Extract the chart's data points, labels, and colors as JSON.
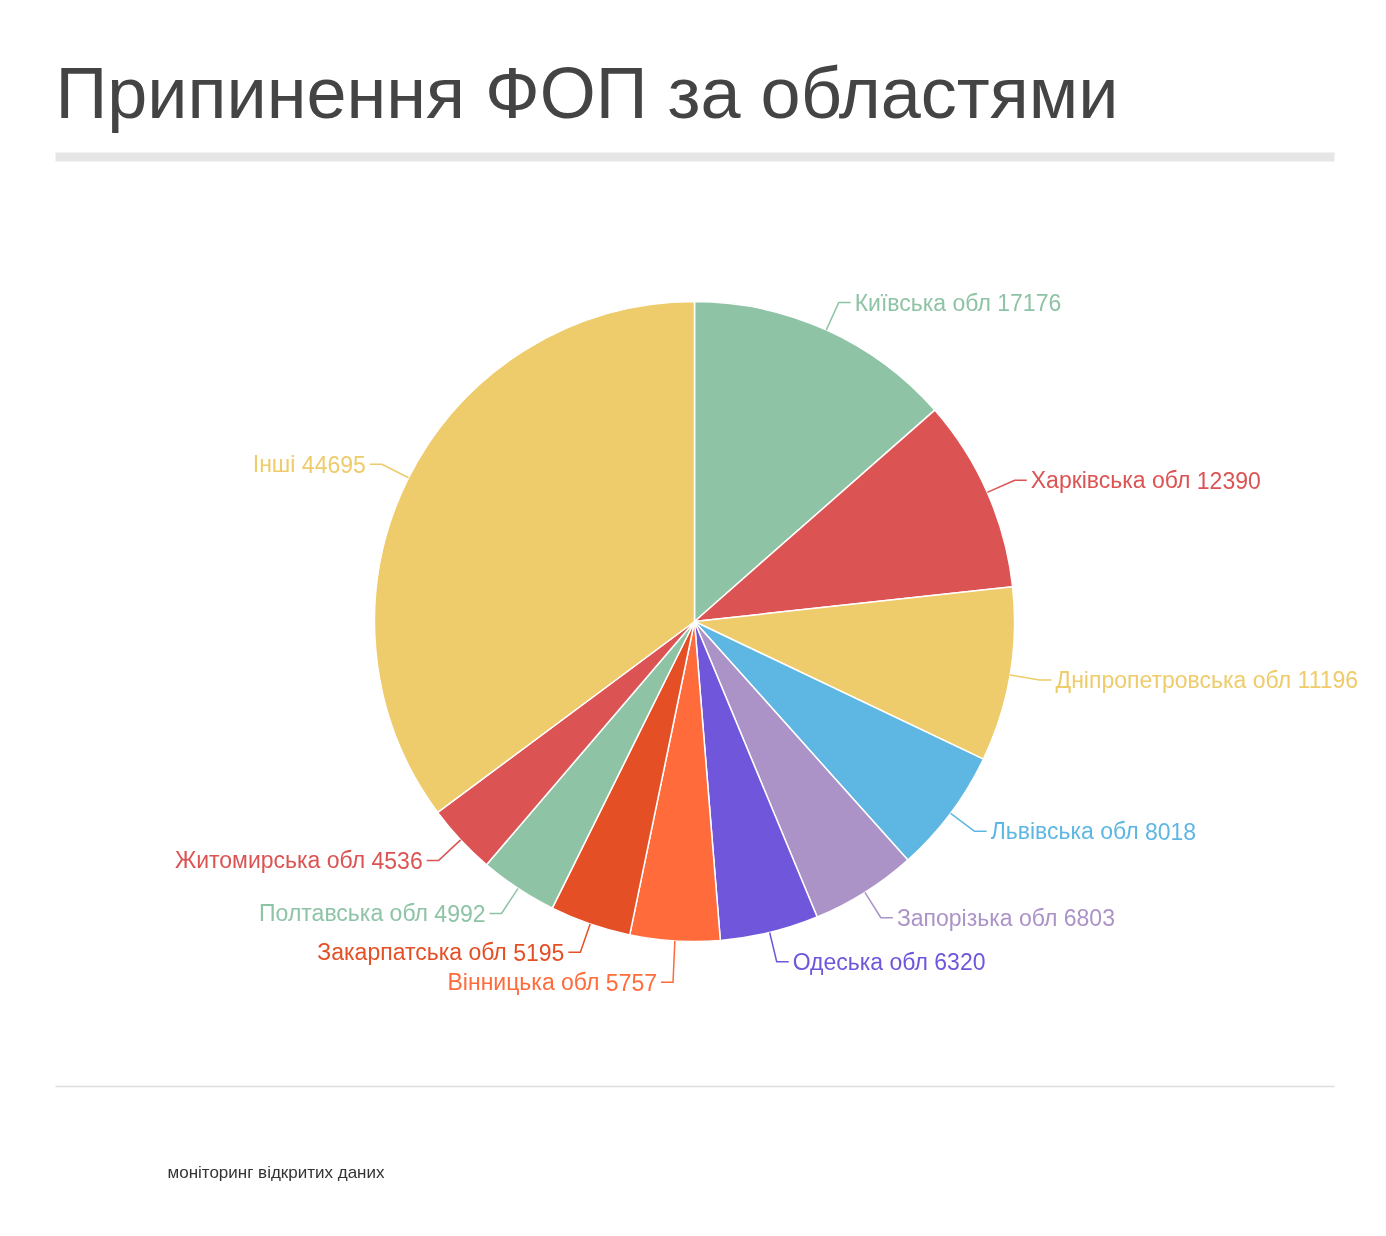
{
  "chart_data": {
    "type": "pie",
    "title": "Припинення ФОП за областями",
    "categories": [
      "Київська обл",
      "Харківська обл",
      "Дніпропетровська обл",
      "Львівська обл",
      "Запорізька обл",
      "Одеська обл",
      "Вінницька обл",
      "Закарпатська обл",
      "Полтавська обл",
      "Житомирська обл",
      "Інші"
    ],
    "values": [
      17176,
      12390,
      11196,
      8018,
      6803,
      6320,
      5757,
      5195,
      4992,
      4536,
      44695
    ],
    "colors": [
      "#8fc3a6",
      "#dc5353",
      "#eecb6b",
      "#5eb7e3",
      "#ab93c8",
      "#6f56db",
      "#ff6b3b",
      "#e44f25",
      "#8fc3a6",
      "#dc5353",
      "#eecb6b"
    ],
    "data_labels": true,
    "annotations": [
      "моніторинг відкритих даних"
    ]
  }
}
